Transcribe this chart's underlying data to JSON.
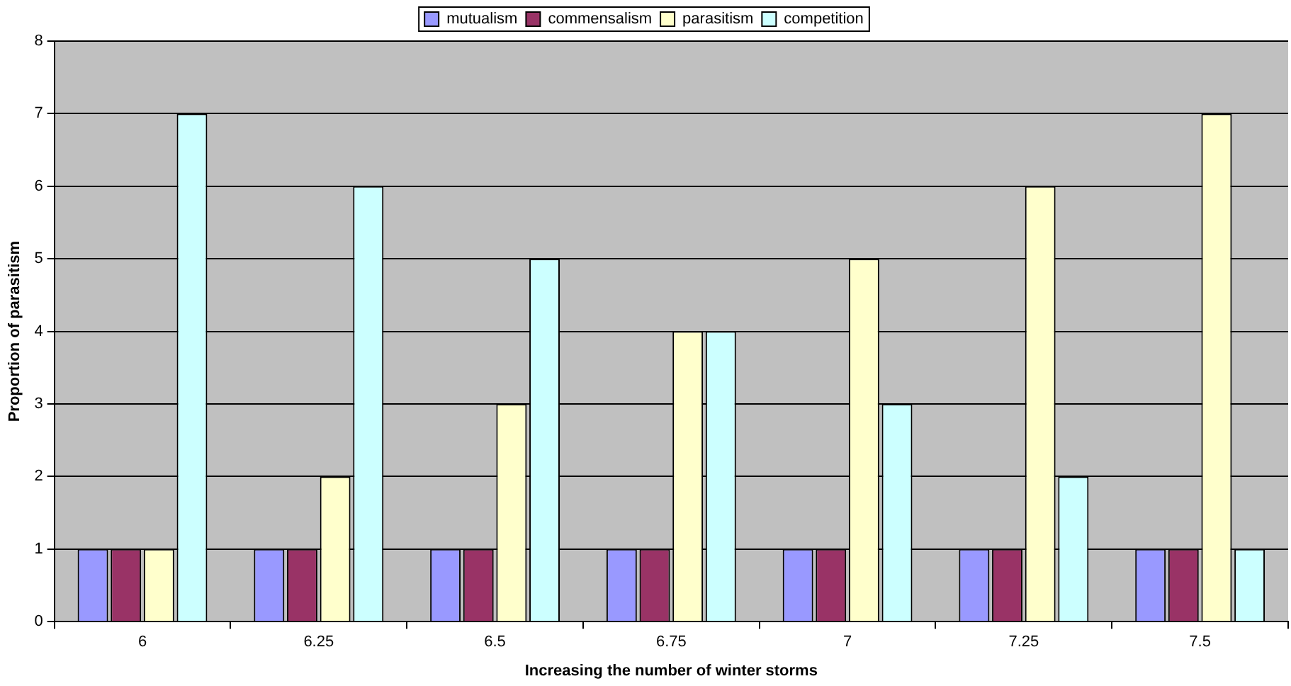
{
  "chart_data": {
    "type": "bar",
    "xlabel": "Increasing the number of winter storms",
    "ylabel": "Proportion of parasitism",
    "categories": [
      "6",
      "6.25",
      "6.5",
      "6.75",
      "7",
      "7.25",
      "7.5"
    ],
    "series": [
      {
        "name": "mutualism",
        "color": "#9999ff",
        "values": [
          1,
          1,
          1,
          1,
          1,
          1,
          1
        ]
      },
      {
        "name": "commensalism",
        "color": "#993366",
        "values": [
          1,
          1,
          1,
          1,
          1,
          1,
          1
        ]
      },
      {
        "name": "parasitism",
        "color": "#ffffcc",
        "values": [
          1,
          2,
          3,
          4,
          5,
          6,
          7
        ]
      },
      {
        "name": "competition",
        "color": "#ccffff",
        "values": [
          7,
          6,
          5,
          4,
          3,
          2,
          1
        ]
      }
    ],
    "ylim": [
      0,
      8
    ],
    "yticks": [
      0,
      1,
      2,
      3,
      4,
      5,
      6,
      7,
      8
    ],
    "grid": "y",
    "legend": "top"
  }
}
